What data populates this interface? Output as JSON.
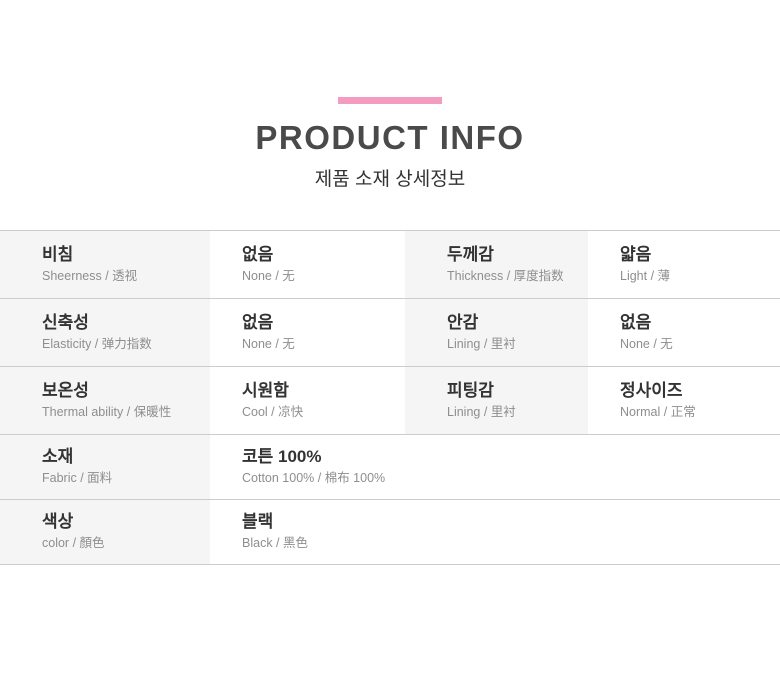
{
  "header": {
    "title": "PRODUCT INFO",
    "subtitle": "제품 소재 상세정보"
  },
  "colors": {
    "accent_pink": "#f49bc1",
    "label_cell_bg": "#f5f5f5",
    "border": "#cccccc",
    "title_text": "#4a4a4a",
    "main_text": "#333333",
    "sub_text": "#8e8e8e"
  },
  "table": {
    "rows": [
      {
        "label1": {
          "ko": "비침",
          "sub": "Sheerness / 透视"
        },
        "value1": {
          "ko": "없음",
          "sub": "None / 无"
        },
        "label2": {
          "ko": "두께감",
          "sub": "Thickness / 厚度指数"
        },
        "value2": {
          "ko": "얇음",
          "sub": "Light / 薄"
        }
      },
      {
        "label1": {
          "ko": "신축성",
          "sub": "Elasticity / 弹力指数"
        },
        "value1": {
          "ko": "없음",
          "sub": "None / 无"
        },
        "label2": {
          "ko": "안감",
          "sub": "Lining / 里衬"
        },
        "value2": {
          "ko": "없음",
          "sub": "None / 无"
        }
      },
      {
        "label1": {
          "ko": "보온성",
          "sub": "Thermal ability / 保暖性"
        },
        "value1": {
          "ko": "시원함",
          "sub": "Cool / 凉快"
        },
        "label2": {
          "ko": "피팅감",
          "sub": "Lining / 里衬"
        },
        "value2": {
          "ko": "정사이즈",
          "sub": "Normal / 正常"
        }
      },
      {
        "label1": {
          "ko": "소재",
          "sub": "Fabric / 面料"
        },
        "value1": {
          "ko": "코튼 100%",
          "sub": "Cotton 100% / 棉布 100%"
        }
      },
      {
        "label1": {
          "ko": "색상",
          "sub": "color / 顏色"
        },
        "value1": {
          "ko": "블랙",
          "sub": "Black / 黑色"
        }
      }
    ]
  }
}
